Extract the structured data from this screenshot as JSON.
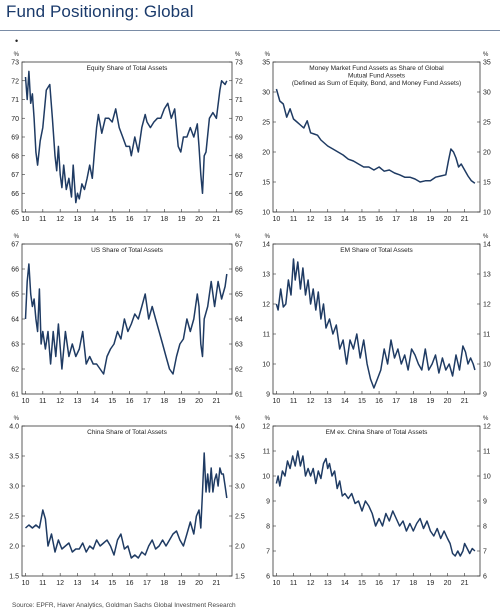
{
  "page": {
    "title": "Fund Positioning: Global",
    "bullet": "•",
    "source": "Source: EPFR, Haver Analytics, Goldman Sachs Global Investment Research"
  },
  "chart_data": [
    {
      "type": "line",
      "title": [
        "Equity Share of Total Assets"
      ],
      "unit": "%",
      "ylim": [
        65,
        73
      ],
      "yticks": [
        65,
        66,
        67,
        68,
        69,
        70,
        71,
        72,
        73
      ],
      "xlim": [
        2009.8,
        2021.9
      ],
      "xtick_labels": [
        "10",
        "11",
        "12",
        "13",
        "14",
        "15",
        "16",
        "17",
        "18",
        "19",
        "20",
        "21"
      ],
      "series": [
        {
          "color": "#1f3b63",
          "x": [
            2010.0,
            2010.1,
            2010.2,
            2010.3,
            2010.4,
            2010.5,
            2010.6,
            2010.7,
            2010.85,
            2011.0,
            2011.2,
            2011.4,
            2011.55,
            2011.7,
            2011.8,
            2011.9,
            2012.0,
            2012.1,
            2012.2,
            2012.35,
            2012.5,
            2012.65,
            2012.75,
            2012.9,
            2013.0,
            2013.1,
            2013.25,
            2013.4,
            2013.55,
            2013.7,
            2013.85,
            2014.0,
            2014.1,
            2014.2,
            2014.4,
            2014.6,
            2014.8,
            2015.0,
            2015.2,
            2015.4,
            2015.6,
            2015.8,
            2016.0,
            2016.1,
            2016.3,
            2016.5,
            2016.7,
            2016.9,
            2017.0,
            2017.2,
            2017.4,
            2017.6,
            2017.8,
            2018.0,
            2018.2,
            2018.4,
            2018.6,
            2018.8,
            2018.95,
            2019.1,
            2019.3,
            2019.5,
            2019.7,
            2019.9,
            2020.0,
            2020.1,
            2020.2,
            2020.3,
            2020.4,
            2020.6,
            2020.8,
            2021.0,
            2021.2,
            2021.3,
            2021.5,
            2021.6
          ],
          "y": [
            72.2,
            71.0,
            72.5,
            70.8,
            71.3,
            70.0,
            68.2,
            67.5,
            68.8,
            69.5,
            71.5,
            71.8,
            70.0,
            68.0,
            67.2,
            68.5,
            67.0,
            66.3,
            67.5,
            66.2,
            66.8,
            65.8,
            67.5,
            65.5,
            66.0,
            65.7,
            66.5,
            66.2,
            66.8,
            67.5,
            66.8,
            68.5,
            69.5,
            70.2,
            69.2,
            70.0,
            70.0,
            69.8,
            70.5,
            69.5,
            69.0,
            68.5,
            68.5,
            68.0,
            69.0,
            68.2,
            69.5,
            70.2,
            69.8,
            69.5,
            69.8,
            70.0,
            70.0,
            70.5,
            70.8,
            70.0,
            70.5,
            68.5,
            68.2,
            69.0,
            69.0,
            69.5,
            69.0,
            69.7,
            68.5,
            67.0,
            66.0,
            68.0,
            68.2,
            70.0,
            70.3,
            70.0,
            71.5,
            72.0,
            71.8,
            72.0
          ]
        }
      ]
    },
    {
      "type": "line",
      "title": [
        "Money Market Fund Assets as Share of Global",
        "Mutual Fund Assets",
        "(Defined as Sum of Equity, Bond, and Money Fund Assets)"
      ],
      "unit": "%",
      "ylim": [
        10,
        35
      ],
      "yticks": [
        10,
        15,
        20,
        25,
        30,
        35
      ],
      "xlim": [
        2009.8,
        2021.9
      ],
      "xtick_labels": [
        "10",
        "11",
        "12",
        "13",
        "14",
        "15",
        "16",
        "17",
        "18",
        "19",
        "20",
        "21"
      ],
      "series": [
        {
          "color": "#1f3b63",
          "x": [
            2010.0,
            2010.2,
            2010.4,
            2010.6,
            2010.8,
            2011.0,
            2011.2,
            2011.4,
            2011.6,
            2011.8,
            2012.0,
            2012.2,
            2012.4,
            2012.6,
            2012.8,
            2013.0,
            2013.3,
            2013.6,
            2013.9,
            2014.2,
            2014.5,
            2014.8,
            2015.1,
            2015.4,
            2015.7,
            2016.0,
            2016.3,
            2016.6,
            2016.9,
            2017.2,
            2017.5,
            2017.8,
            2018.1,
            2018.4,
            2018.7,
            2019.0,
            2019.3,
            2019.6,
            2019.9,
            2020.05,
            2020.2,
            2020.35,
            2020.5,
            2020.65,
            2020.8,
            2021.0,
            2021.2,
            2021.4,
            2021.6
          ],
          "y": [
            30.5,
            28.5,
            28.0,
            25.8,
            27.2,
            25.5,
            25.0,
            24.5,
            24.0,
            25.2,
            23.2,
            23.0,
            22.8,
            22.0,
            21.5,
            21.0,
            20.5,
            20.0,
            19.5,
            18.8,
            18.5,
            18.0,
            17.5,
            17.5,
            17.0,
            17.5,
            16.8,
            17.0,
            16.5,
            16.2,
            15.8,
            15.8,
            15.5,
            15.0,
            15.2,
            15.2,
            15.8,
            16.0,
            16.2,
            18.5,
            20.5,
            20.0,
            19.0,
            17.5,
            18.0,
            17.0,
            16.0,
            15.2,
            14.8
          ]
        }
      ]
    },
    {
      "type": "line",
      "title": [
        "US Share of Total Assets"
      ],
      "unit": "%",
      "ylim": [
        61,
        67
      ],
      "yticks": [
        61,
        62,
        63,
        64,
        65,
        66,
        67
      ],
      "xlim": [
        2009.8,
        2021.9
      ],
      "xtick_labels": [
        "10",
        "11",
        "12",
        "13",
        "14",
        "15",
        "16",
        "17",
        "18",
        "19",
        "20",
        "21"
      ],
      "series": [
        {
          "color": "#1f3b63",
          "x": [
            2010.0,
            2010.1,
            2010.2,
            2010.3,
            2010.4,
            2010.5,
            2010.6,
            2010.7,
            2010.8,
            2010.9,
            2011.0,
            2011.15,
            2011.3,
            2011.45,
            2011.6,
            2011.75,
            2011.9,
            2012.1,
            2012.3,
            2012.5,
            2012.7,
            2012.9,
            2013.1,
            2013.3,
            2013.5,
            2013.7,
            2013.9,
            2014.1,
            2014.3,
            2014.5,
            2014.7,
            2014.9,
            2015.1,
            2015.3,
            2015.5,
            2015.7,
            2015.9,
            2016.1,
            2016.3,
            2016.5,
            2016.7,
            2016.9,
            2017.1,
            2017.3,
            2017.5,
            2017.7,
            2017.9,
            2018.1,
            2018.3,
            2018.5,
            2018.7,
            2018.9,
            2019.1,
            2019.3,
            2019.5,
            2019.7,
            2019.9,
            2020.0,
            2020.1,
            2020.2,
            2020.3,
            2020.5,
            2020.7,
            2020.9,
            2021.1,
            2021.3,
            2021.5,
            2021.6
          ],
          "y": [
            64.0,
            65.5,
            66.2,
            65.0,
            64.5,
            64.8,
            64.0,
            63.5,
            65.2,
            63.0,
            63.5,
            62.8,
            63.5,
            62.2,
            63.5,
            62.5,
            63.8,
            62.0,
            63.5,
            62.5,
            63.0,
            62.5,
            62.8,
            63.5,
            62.2,
            62.5,
            62.2,
            62.2,
            62.0,
            61.8,
            62.5,
            62.8,
            63.0,
            63.5,
            63.2,
            64.0,
            63.5,
            63.8,
            64.2,
            64.0,
            64.5,
            65.0,
            64.0,
            64.5,
            64.0,
            63.5,
            63.0,
            62.5,
            62.0,
            61.8,
            62.5,
            63.0,
            63.2,
            64.0,
            63.5,
            64.0,
            65.0,
            64.5,
            63.0,
            62.5,
            64.0,
            64.5,
            65.5,
            64.5,
            65.5,
            64.8,
            65.3,
            65.8
          ]
        }
      ]
    },
    {
      "type": "line",
      "title": [
        "EM Share of Total Assets"
      ],
      "unit": "%",
      "ylim": [
        9,
        14
      ],
      "yticks": [
        9,
        10,
        11,
        12,
        13,
        14
      ],
      "xlim": [
        2009.8,
        2021.9
      ],
      "xtick_labels": [
        "10",
        "11",
        "12",
        "13",
        "14",
        "15",
        "16",
        "17",
        "18",
        "19",
        "20",
        "21"
      ],
      "series": [
        {
          "color": "#1f3b63",
          "x": [
            2010.0,
            2010.1,
            2010.25,
            2010.4,
            2010.55,
            2010.7,
            2010.85,
            2011.0,
            2011.1,
            2011.25,
            2011.4,
            2011.55,
            2011.7,
            2011.85,
            2012.0,
            2012.15,
            2012.3,
            2012.45,
            2012.6,
            2012.75,
            2012.9,
            2013.1,
            2013.3,
            2013.5,
            2013.7,
            2013.9,
            2014.1,
            2014.3,
            2014.5,
            2014.7,
            2014.9,
            2015.1,
            2015.3,
            2015.5,
            2015.7,
            2015.9,
            2016.1,
            2016.3,
            2016.5,
            2016.7,
            2016.9,
            2017.1,
            2017.3,
            2017.5,
            2017.7,
            2017.9,
            2018.1,
            2018.3,
            2018.5,
            2018.7,
            2018.9,
            2019.1,
            2019.3,
            2019.5,
            2019.7,
            2019.9,
            2020.1,
            2020.3,
            2020.5,
            2020.7,
            2020.9,
            2021.05,
            2021.2,
            2021.35,
            2021.5,
            2021.6
          ],
          "y": [
            12.0,
            11.8,
            12.5,
            11.9,
            12.0,
            12.8,
            12.3,
            13.5,
            12.8,
            13.4,
            12.5,
            13.2,
            12.3,
            12.8,
            12.0,
            12.5,
            11.8,
            12.4,
            11.5,
            12.0,
            11.2,
            11.5,
            11.0,
            11.3,
            10.5,
            10.8,
            10.0,
            10.8,
            10.5,
            11.0,
            10.2,
            10.8,
            10.0,
            9.5,
            9.2,
            9.5,
            9.8,
            10.5,
            10.0,
            10.8,
            10.2,
            10.5,
            10.0,
            10.3,
            9.8,
            10.5,
            10.3,
            10.0,
            9.8,
            10.5,
            9.8,
            10.0,
            10.3,
            9.7,
            10.2,
            9.8,
            10.0,
            9.6,
            10.3,
            9.8,
            10.6,
            10.4,
            10.0,
            10.2,
            10.0,
            9.8
          ]
        }
      ]
    },
    {
      "type": "line",
      "title": [
        "China Share of Total Assets"
      ],
      "unit": "%",
      "ylim": [
        1.5,
        4.0
      ],
      "yticks": [
        1.5,
        2.0,
        2.5,
        3.0,
        3.5,
        4.0
      ],
      "xlim": [
        2009.8,
        2021.9
      ],
      "xtick_labels": [
        "10",
        "11",
        "12",
        "13",
        "14",
        "15",
        "16",
        "17",
        "18",
        "19",
        "20",
        "21"
      ],
      "series": [
        {
          "color": "#1f3b63",
          "x": [
            2010.0,
            2010.2,
            2010.4,
            2010.6,
            2010.8,
            2011.0,
            2011.15,
            2011.3,
            2011.5,
            2011.7,
            2011.9,
            2012.1,
            2012.3,
            2012.5,
            2012.7,
            2012.9,
            2013.1,
            2013.3,
            2013.5,
            2013.7,
            2013.9,
            2014.1,
            2014.3,
            2014.5,
            2014.7,
            2014.9,
            2015.1,
            2015.3,
            2015.5,
            2015.7,
            2015.9,
            2016.1,
            2016.3,
            2016.5,
            2016.7,
            2016.9,
            2017.1,
            2017.3,
            2017.5,
            2017.7,
            2017.9,
            2018.1,
            2018.3,
            2018.5,
            2018.7,
            2018.9,
            2019.1,
            2019.3,
            2019.5,
            2019.7,
            2019.85,
            2020.0,
            2020.1,
            2020.2,
            2020.3,
            2020.4,
            2020.5,
            2020.6,
            2020.7,
            2020.8,
            2020.9,
            2021.0,
            2021.1,
            2021.2,
            2021.3,
            2021.4,
            2021.5,
            2021.6
          ],
          "y": [
            2.3,
            2.35,
            2.3,
            2.35,
            2.3,
            2.6,
            2.45,
            2.0,
            2.2,
            1.9,
            2.1,
            1.95,
            2.0,
            2.05,
            1.9,
            1.95,
            1.95,
            2.05,
            1.9,
            2.0,
            1.95,
            2.1,
            2.0,
            2.05,
            2.1,
            2.0,
            1.85,
            2.1,
            2.2,
            1.95,
            2.0,
            1.8,
            1.85,
            1.8,
            1.9,
            1.85,
            2.0,
            2.1,
            1.95,
            2.0,
            2.1,
            2.0,
            2.1,
            2.2,
            2.25,
            2.1,
            2.0,
            2.2,
            2.4,
            2.2,
            2.5,
            2.6,
            2.3,
            2.9,
            3.55,
            2.9,
            3.2,
            2.9,
            3.3,
            2.9,
            3.1,
            3.2,
            3.0,
            3.3,
            3.2,
            3.2,
            3.0,
            2.8
          ]
        }
      ]
    },
    {
      "type": "line",
      "title": [
        "EM ex. China Share of Total Assets"
      ],
      "unit": "%",
      "ylim": [
        6,
        12
      ],
      "yticks": [
        6,
        7,
        8,
        9,
        10,
        11,
        12
      ],
      "xlim": [
        2009.8,
        2021.9
      ],
      "xtick_labels": [
        "10",
        "11",
        "12",
        "13",
        "14",
        "15",
        "16",
        "17",
        "18",
        "19",
        "20",
        "21"
      ],
      "series": [
        {
          "color": "#1f3b63",
          "x": [
            2010.0,
            2010.1,
            2010.2,
            2010.35,
            2010.5,
            2010.65,
            2010.8,
            2010.95,
            2011.1,
            2011.25,
            2011.4,
            2011.55,
            2011.7,
            2011.85,
            2012.0,
            2012.15,
            2012.3,
            2012.45,
            2012.6,
            2012.75,
            2012.9,
            2013.0,
            2013.1,
            2013.25,
            2013.4,
            2013.55,
            2013.7,
            2013.85,
            2014.0,
            2014.2,
            2014.4,
            2014.6,
            2014.8,
            2015.0,
            2015.2,
            2015.4,
            2015.6,
            2015.8,
            2016.0,
            2016.2,
            2016.4,
            2016.6,
            2016.8,
            2017.0,
            2017.2,
            2017.4,
            2017.6,
            2017.8,
            2018.0,
            2018.2,
            2018.4,
            2018.6,
            2018.8,
            2019.0,
            2019.2,
            2019.4,
            2019.6,
            2019.8,
            2020.0,
            2020.15,
            2020.3,
            2020.45,
            2020.6,
            2020.75,
            2020.9,
            2021.0,
            2021.15,
            2021.3,
            2021.45,
            2021.6
          ],
          "y": [
            9.7,
            10.0,
            9.6,
            10.2,
            10.0,
            10.6,
            10.3,
            10.8,
            10.4,
            11.0,
            10.4,
            10.8,
            10.0,
            10.3,
            10.0,
            10.3,
            9.7,
            10.2,
            9.9,
            10.5,
            10.7,
            10.3,
            10.5,
            10.0,
            10.2,
            9.5,
            9.8,
            9.2,
            9.3,
            9.1,
            9.3,
            8.9,
            9.0,
            8.6,
            9.0,
            8.8,
            8.5,
            8.0,
            8.3,
            8.0,
            8.5,
            8.2,
            8.6,
            8.3,
            8.0,
            8.2,
            7.8,
            8.1,
            7.8,
            8.1,
            8.3,
            7.9,
            8.2,
            7.8,
            7.6,
            7.9,
            7.5,
            7.8,
            7.5,
            7.3,
            6.9,
            6.8,
            7.0,
            6.8,
            7.0,
            7.3,
            7.1,
            6.9,
            7.1,
            7.0
          ]
        }
      ]
    }
  ]
}
